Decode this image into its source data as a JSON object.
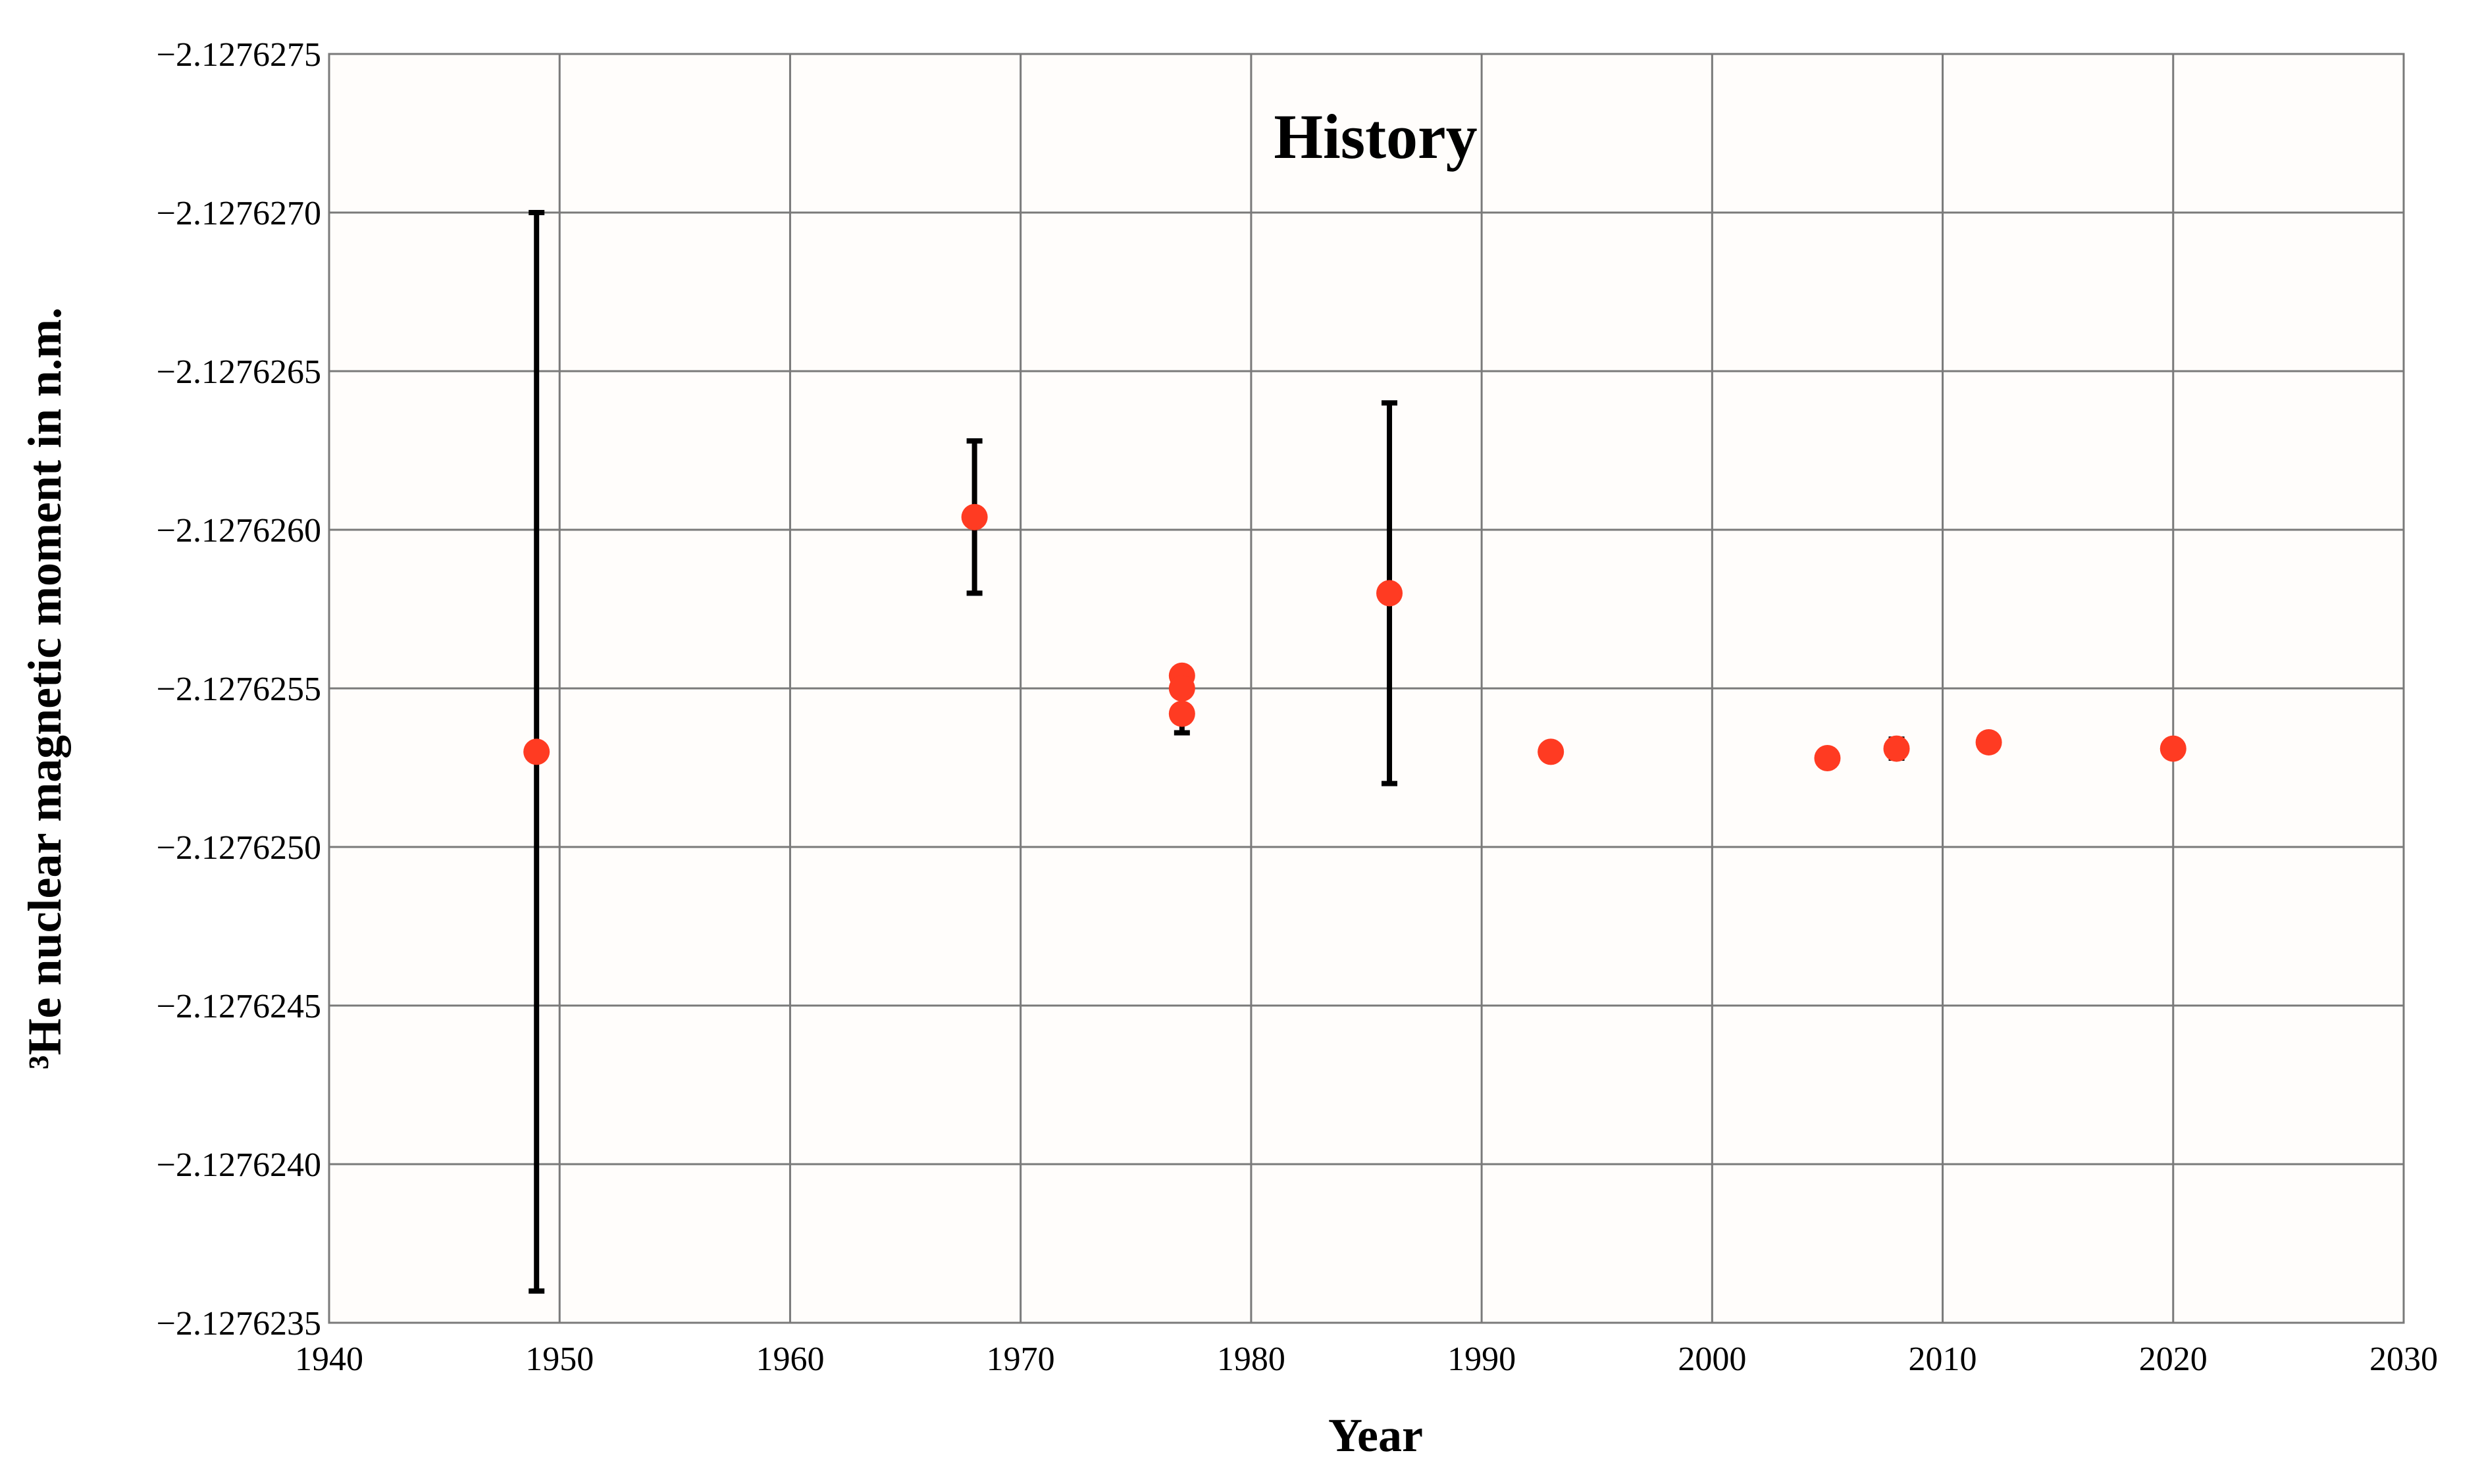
{
  "chart_data": {
    "type": "scatter",
    "title": "History",
    "xlabel": "Year",
    "ylabel": "³He nuclear magnetic moment in n.m.",
    "xlim": [
      1940,
      2030
    ],
    "ylim": [
      -2.1276275,
      -2.1276235
    ],
    "x_ticks": [
      1940,
      1950,
      1960,
      1970,
      1980,
      1990,
      2000,
      2010,
      2020,
      2030
    ],
    "x_tick_labels": [
      "1940",
      "1950",
      "1960",
      "1970",
      "1980",
      "1990",
      "2000",
      "2010",
      "2020",
      "2030"
    ],
    "y_ticks": [
      -2.1276275,
      -2.127627,
      -2.1276265,
      -2.127626,
      -2.1276255,
      -2.127625,
      -2.1276245,
      -2.127624,
      -2.1276235
    ],
    "y_tick_labels": [
      "−2.1276275",
      "−2.1276270",
      "−2.1276265",
      "−2.1276260",
      "−2.1276255",
      "−2.1276250",
      "−2.1276245",
      "−2.1276240",
      "−2.1276235"
    ],
    "grid": true,
    "marker_color": "#ff3b22",
    "errorbar_color": "#000000",
    "points": [
      {
        "x": 1949,
        "y": -2.1276253,
        "err_low": -2.127627,
        "err_high": -2.1276236
      },
      {
        "x": 1968,
        "y": -2.12762604,
        "err_low": -2.12762628,
        "err_high": -2.1276258
      },
      {
        "x": 1977,
        "y": -2.12762554
      },
      {
        "x": 1977,
        "y": -2.1276255
      },
      {
        "x": 1977,
        "y": -2.12762542,
        "err_low": -2.12762542,
        "err_high": -2.12762536
      },
      {
        "x": 1986,
        "y": -2.1276258,
        "err_low": -2.1276264,
        "err_high": -2.1276252
      },
      {
        "x": 1993,
        "y": -2.1276253
      },
      {
        "x": 2005,
        "y": -2.12762528
      },
      {
        "x": 2008,
        "y": -2.12762531,
        "err_low": -2.12762534,
        "err_high": -2.12762528
      },
      {
        "x": 2012,
        "y": -2.12762533
      },
      {
        "x": 2020,
        "y": -2.12762531
      }
    ]
  }
}
